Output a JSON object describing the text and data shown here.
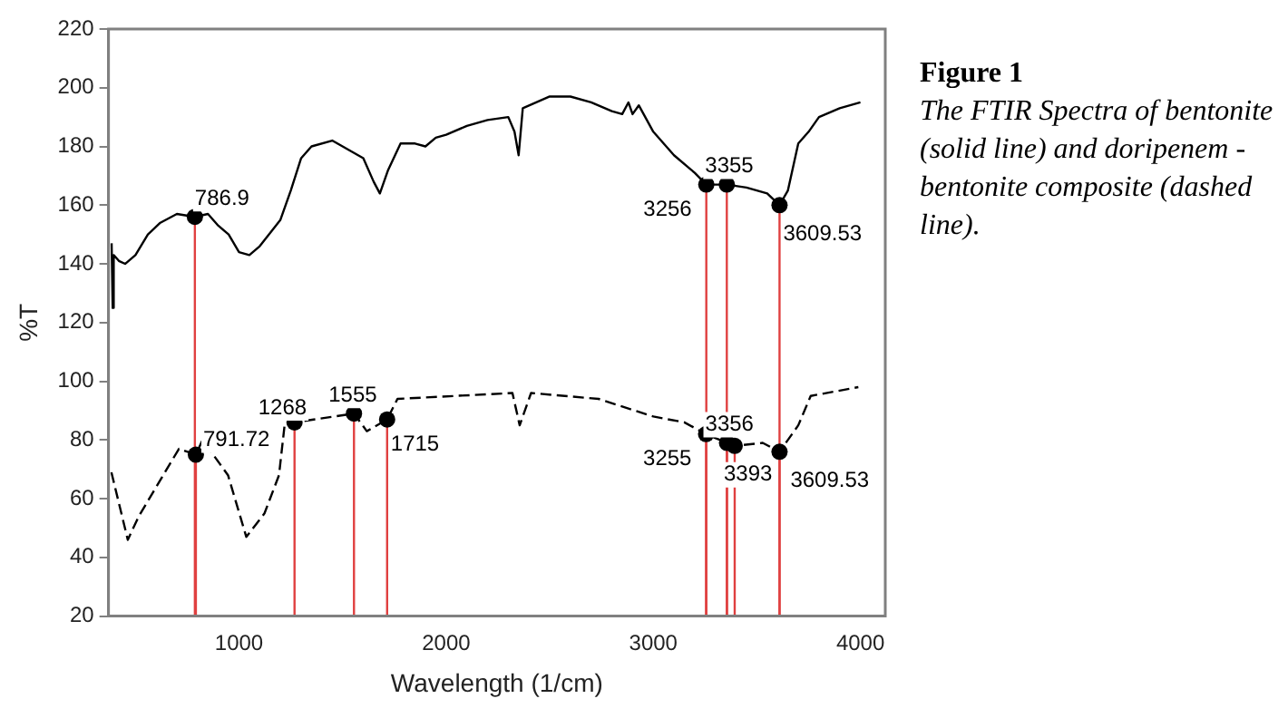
{
  "chart_data": {
    "type": "line",
    "title": "Figure 1",
    "subtitle": "The FTIR Spectra of bentonite (solid line) and doripenem - bentonite composite (dashed line).",
    "xlabel": "Wavelength (1/cm)",
    "ylabel": "%T",
    "xlim": [
      370,
      4120
    ],
    "ylim": [
      20,
      220
    ],
    "xticks": [
      1000,
      2000,
      3000,
      4000
    ],
    "yticks": [
      20,
      40,
      60,
      80,
      100,
      120,
      140,
      160,
      180,
      200,
      220
    ],
    "grid": false,
    "legend": false,
    "series": [
      {
        "color": "#000000",
        "line_style": "solid",
        "x": [
          385,
          390,
          395,
          420,
          450,
          500,
          560,
          620,
          700,
          786.9,
          850,
          900,
          950,
          1000,
          1050,
          1100,
          1200,
          1250,
          1300,
          1350,
          1450,
          1500,
          1550,
          1600,
          1650,
          1680,
          1720,
          1780,
          1850,
          1900,
          1950,
          2000,
          2100,
          2200,
          2300,
          2330,
          2350,
          2370,
          2500,
          2600,
          2700,
          2800,
          2850,
          2880,
          2900,
          2930,
          3000,
          3100,
          3200,
          3256,
          3355,
          3450,
          3550,
          3609.53,
          3650,
          3700,
          3750,
          3800,
          3900,
          4000
        ],
        "values": [
          147,
          125,
          143,
          141,
          140,
          143,
          150,
          154,
          157,
          156,
          157,
          153,
          150,
          144,
          143,
          146,
          155,
          165,
          176,
          180,
          182,
          180,
          178,
          176,
          168,
          164,
          172,
          181,
          181,
          180,
          183,
          184,
          187,
          189,
          190,
          185,
          177,
          193,
          197,
          197,
          195,
          192,
          191,
          195,
          191,
          194,
          185,
          177,
          171,
          167,
          167,
          166,
          164,
          160,
          165,
          181,
          185,
          190,
          193,
          195
        ]
      },
      {
        "color": "#000000",
        "line_style": "dashed",
        "x": [
          384,
          463,
          516,
          710,
          791.72,
          824,
          947,
          1035,
          1123,
          1193,
          1220,
          1268,
          1555,
          1617,
          1715,
          1765,
          2320,
          2355,
          2410,
          2736,
          3000,
          3150,
          3255,
          3356,
          3393,
          3528,
          3609.53,
          3700,
          3760,
          3990
        ],
        "values": [
          69,
          46,
          54,
          77,
          75,
          80,
          68,
          47,
          55,
          68,
          85,
          86,
          89,
          83,
          87,
          94,
          96,
          85,
          96,
          94,
          88,
          86,
          82,
          79,
          78,
          79,
          76,
          85,
          95,
          98
        ]
      }
    ],
    "annotations": [
      {
        "text": "786.9",
        "x": 786.9,
        "y": 156
      },
      {
        "text": "3256",
        "x": 3256,
        "y": 167
      },
      {
        "text": "3355",
        "x": 3355,
        "y": 167
      },
      {
        "text": "3609.53",
        "x": 3609.53,
        "y": 160
      },
      {
        "text": "791.72",
        "x": 791.72,
        "y": 75
      },
      {
        "text": "1268",
        "x": 1268,
        "y": 86
      },
      {
        "text": "1555",
        "x": 1555,
        "y": 89
      },
      {
        "text": "1715",
        "x": 1715,
        "y": 87
      },
      {
        "text": "3255",
        "x": 3255,
        "y": 82
      },
      {
        "text": "3356",
        "x": 3356,
        "y": 79
      },
      {
        "text": "3393",
        "x": 3393,
        "y": 78
      },
      {
        "text": "3609.53",
        "x": 3609.53,
        "y": 76
      }
    ]
  }
}
